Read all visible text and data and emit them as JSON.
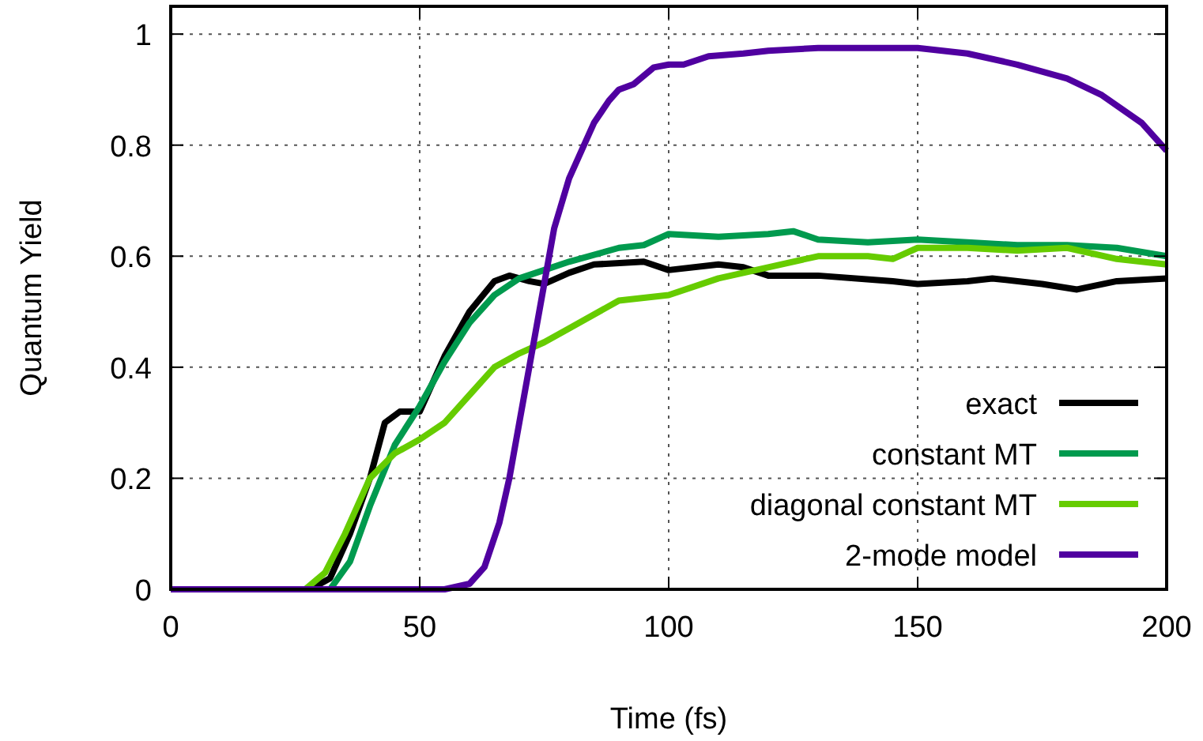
{
  "chart_data": {
    "type": "line",
    "xlabel": "Time (fs)",
    "ylabel": "Quantum Yield",
    "xlim": [
      0,
      200
    ],
    "ylim": [
      0,
      1.05
    ],
    "xticks": [
      0,
      50,
      100,
      150,
      200
    ],
    "yticks": [
      0,
      0.2,
      0.4,
      0.6,
      0.8,
      1
    ],
    "grid": true,
    "legend": "bottom right",
    "line_style": "solid",
    "series": [
      {
        "name": "exact",
        "color": "#000000",
        "x": [
          0,
          28,
          32,
          36,
          40,
          43,
          46,
          50,
          55,
          60,
          65,
          68,
          72,
          75,
          80,
          85,
          95,
          100,
          110,
          115,
          120,
          130,
          145,
          150,
          160,
          165,
          175,
          182,
          190,
          200
        ],
        "values": [
          0,
          0,
          0.02,
          0.1,
          0.2,
          0.3,
          0.32,
          0.32,
          0.42,
          0.5,
          0.555,
          0.565,
          0.555,
          0.55,
          0.57,
          0.585,
          0.59,
          0.575,
          0.585,
          0.58,
          0.565,
          0.565,
          0.555,
          0.55,
          0.555,
          0.56,
          0.55,
          0.54,
          0.555,
          0.56
        ]
      },
      {
        "name": "constant MT",
        "color": "#009a4e",
        "x": [
          0,
          32,
          36,
          40,
          45,
          50,
          55,
          60,
          65,
          70,
          75,
          80,
          90,
          95,
          100,
          110,
          120,
          125,
          130,
          140,
          150,
          160,
          170,
          180,
          190,
          200
        ],
        "values": [
          0,
          0,
          0.05,
          0.15,
          0.26,
          0.33,
          0.41,
          0.48,
          0.53,
          0.56,
          0.575,
          0.59,
          0.615,
          0.62,
          0.64,
          0.635,
          0.64,
          0.645,
          0.63,
          0.625,
          0.63,
          0.625,
          0.62,
          0.62,
          0.615,
          0.6
        ]
      },
      {
        "name": "diagonal constant MT",
        "color": "#66cc00",
        "x": [
          0,
          27,
          31,
          35,
          40,
          45,
          50,
          55,
          60,
          65,
          70,
          75,
          80,
          90,
          95,
          100,
          110,
          120,
          130,
          140,
          145,
          150,
          160,
          170,
          180,
          190,
          200
        ],
        "values": [
          0,
          0,
          0.03,
          0.1,
          0.2,
          0.245,
          0.27,
          0.3,
          0.35,
          0.4,
          0.425,
          0.445,
          0.47,
          0.52,
          0.525,
          0.53,
          0.56,
          0.58,
          0.6,
          0.6,
          0.595,
          0.615,
          0.615,
          0.61,
          0.615,
          0.595,
          0.585
        ]
      },
      {
        "name": "2-mode model",
        "color": "#5000a0",
        "x": [
          0,
          55,
          60,
          63,
          66,
          68,
          70,
          72,
          75,
          77,
          80,
          83,
          85,
          88,
          90,
          93,
          97,
          100,
          103,
          108,
          115,
          120,
          130,
          140,
          150,
          160,
          170,
          180,
          187,
          195,
          200
        ],
        "values": [
          0,
          0,
          0.01,
          0.04,
          0.12,
          0.2,
          0.3,
          0.4,
          0.55,
          0.65,
          0.74,
          0.8,
          0.84,
          0.88,
          0.9,
          0.91,
          0.94,
          0.945,
          0.945,
          0.96,
          0.965,
          0.97,
          0.975,
          0.975,
          0.975,
          0.965,
          0.945,
          0.92,
          0.89,
          0.84,
          0.79
        ]
      }
    ]
  }
}
